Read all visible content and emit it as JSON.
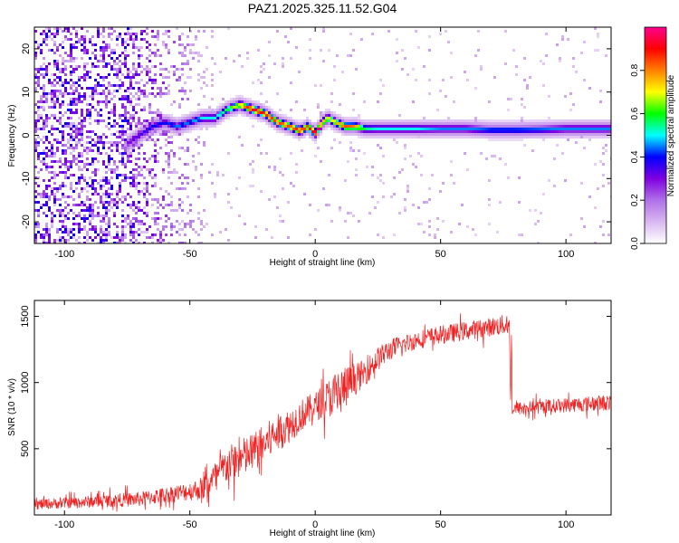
{
  "chart_data": [
    {
      "type": "heatmap",
      "title": "PAZ1.2025.325.11.52.G04",
      "xlabel": "Height of straight line (km)",
      "ylabel": "Frequency (Hz)",
      "xlim": [
        -112,
        118
      ],
      "ylim": [
        -25,
        25
      ],
      "xticks": [
        -100,
        -50,
        0,
        50,
        100
      ],
      "yticks": [
        20,
        10,
        0,
        -10,
        -20
      ],
      "colorbar": {
        "label": "Normalized spectral amplitude",
        "range": [
          0.0,
          1.0
        ],
        "ticks": [
          "0.0",
          "0.2",
          "0.4",
          "0.6",
          "0.8"
        ],
        "colors": [
          "#ffffff",
          "#d9b8f0",
          "#b070e8",
          "#8000e0",
          "#0000ff",
          "#00ffff",
          "#00ff00",
          "#ffff00",
          "#ff8000",
          "#ff0000",
          "#ff0090"
        ]
      },
      "ridge": {
        "x": [
          -75,
          -70,
          -65,
          -60,
          -55,
          -50,
          -45,
          -40,
          -35,
          -30,
          -25,
          -20,
          -15,
          -10,
          -6,
          -3,
          0,
          3,
          5,
          8,
          12,
          16,
          20,
          25,
          30,
          40,
          50,
          60,
          70,
          80,
          90,
          100,
          118
        ],
        "y": [
          -2,
          0,
          2,
          3,
          2,
          3,
          4,
          4,
          6,
          7,
          6,
          5,
          3,
          2,
          1,
          2,
          0.5,
          3,
          4,
          3,
          2,
          2,
          1.5,
          1.5,
          1.5,
          1.5,
          1.5,
          1.5,
          1.2,
          1.2,
          1.3,
          1.5,
          1.5
        ],
        "amplitude": [
          0.3,
          0.35,
          0.4,
          0.4,
          0.45,
          0.45,
          0.5,
          0.5,
          0.6,
          0.75,
          0.95,
          0.9,
          0.85,
          0.85,
          0.9,
          0.85,
          1.0,
          0.8,
          0.7,
          0.75,
          0.85,
          0.8,
          0.55,
          0.5,
          0.5,
          0.5,
          0.45,
          0.45,
          0.45,
          0.45,
          0.45,
          0.45,
          0.45
        ]
      },
      "noise_region_x": [
        -112,
        -35
      ]
    },
    {
      "type": "line",
      "xlabel": "Height of straight line (km)",
      "ylabel": "SNR (10 * v/v)",
      "xlim": [
        -112,
        118
      ],
      "ylim": [
        0,
        1620
      ],
      "xticks": [
        -100,
        -50,
        0,
        50,
        100
      ],
      "yticks": [
        500,
        1000,
        1500
      ],
      "color": "#ee2222",
      "series": [
        {
          "name": "SNR",
          "x": [
            -112,
            -100,
            -90,
            -80,
            -70,
            -60,
            -50,
            -45,
            -40,
            -35,
            -30,
            -25,
            -20,
            -15,
            -10,
            -5,
            0,
            5,
            10,
            15,
            20,
            25,
            30,
            40,
            50,
            60,
            70,
            77,
            78,
            85,
            100,
            118
          ],
          "y": [
            80,
            90,
            100,
            110,
            120,
            150,
            180,
            200,
            280,
            380,
            420,
            470,
            540,
            620,
            680,
            760,
            820,
            880,
            930,
            1010,
            1080,
            1180,
            1250,
            1320,
            1360,
            1390,
            1420,
            1440,
            800,
            810,
            830,
            850
          ],
          "noise": [
            40,
            40,
            45,
            50,
            55,
            60,
            70,
            90,
            120,
            140,
            150,
            150,
            150,
            140,
            130,
            120,
            110,
            140,
            200,
            120,
            100,
            90,
            80,
            70,
            70,
            70,
            70,
            80,
            50,
            50,
            55,
            60
          ]
        }
      ]
    }
  ]
}
